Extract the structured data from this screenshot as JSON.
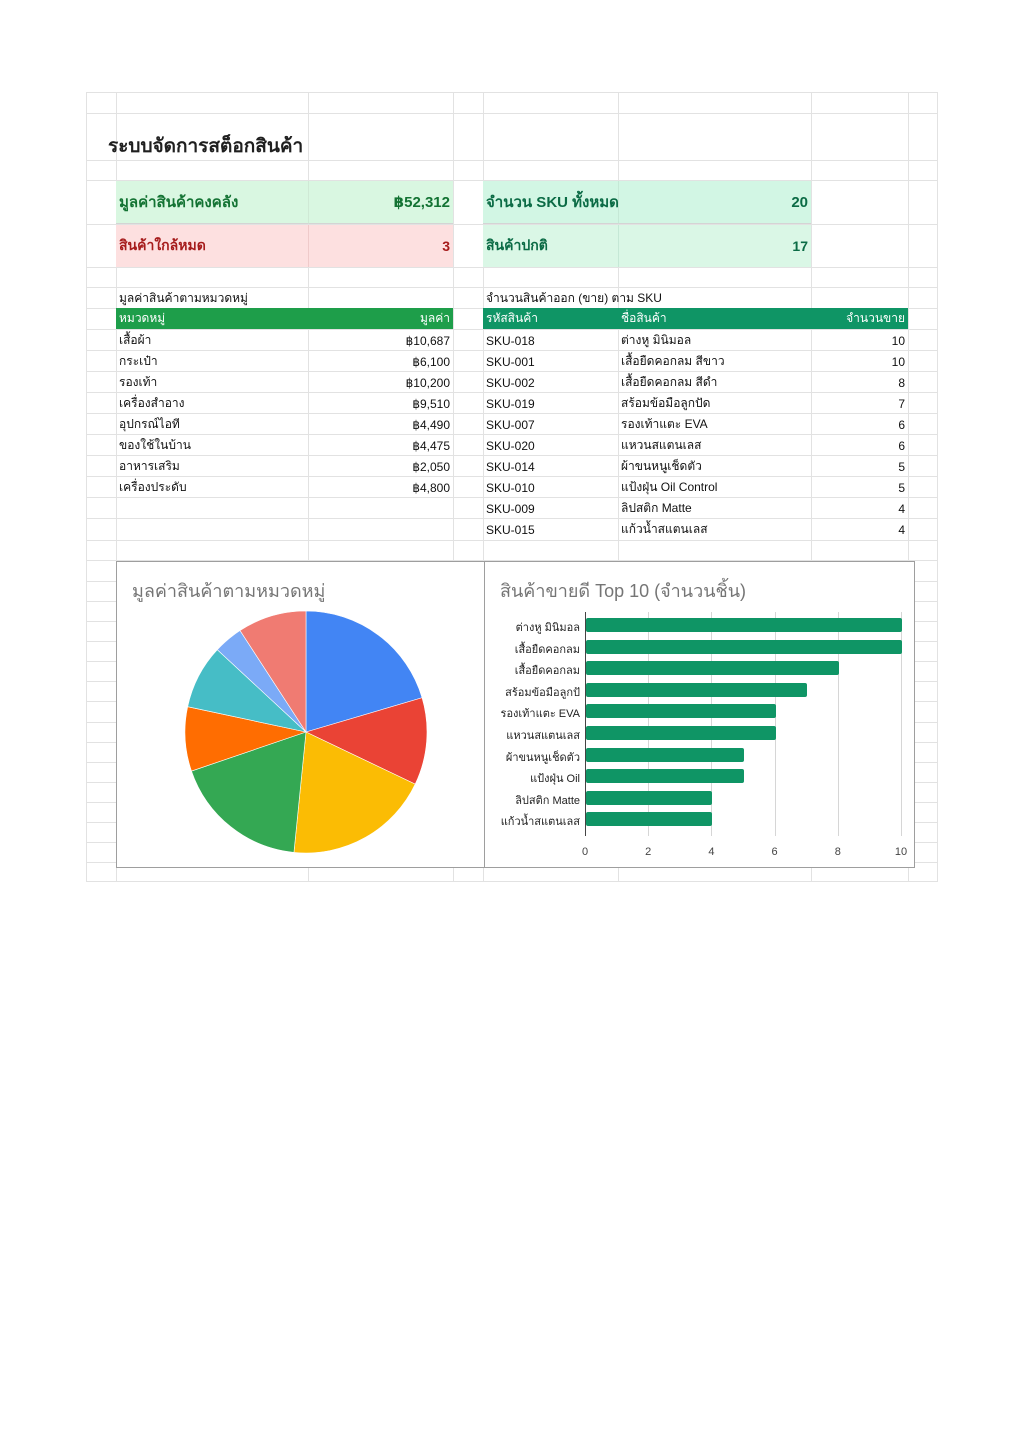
{
  "sheet": {
    "title": "ระบบจัดการสต็อกสินค้า"
  },
  "kpis": {
    "inventory_value": {
      "label": "มูลค่าสินค้าคงคลัง",
      "value": "฿52,312"
    },
    "total_sku": {
      "label": "จำนวน SKU ทั้งหมด",
      "value": "20"
    },
    "low_stock": {
      "label": "สินค้าใกล้หมด",
      "value": "3"
    },
    "normal_stock": {
      "label": "สินค้าปกติ",
      "value": "17"
    }
  },
  "category_table": {
    "caption": "มูลค่าสินค้าตามหมวดหมู่",
    "headers": [
      "หมวดหมู่",
      "มูลค่า"
    ],
    "rows": [
      [
        "เสื้อผ้า",
        "฿10,687"
      ],
      [
        "กระเป๋า",
        "฿6,100"
      ],
      [
        "รองเท้า",
        "฿10,200"
      ],
      [
        "เครื่องสำอาง",
        "฿9,510"
      ],
      [
        "อุปกรณ์ไอที",
        "฿4,490"
      ],
      [
        "ของใช้ในบ้าน",
        "฿4,475"
      ],
      [
        "อาหารเสริม",
        "฿2,050"
      ],
      [
        "เครื่องประดับ",
        "฿4,800"
      ]
    ]
  },
  "sales_table": {
    "caption": "จำนวนสินค้าออก (ขาย) ตาม SKU",
    "headers": [
      "รหัสสินค้า",
      "ชื่อสินค้า",
      "จำนวนขาย"
    ],
    "rows": [
      [
        "SKU-018",
        "ต่างหู มินิมอล",
        "10"
      ],
      [
        "SKU-001",
        "เสื้อยืดคอกลม สีขาว",
        "10"
      ],
      [
        "SKU-002",
        "เสื้อยืดคอกลม สีดำ",
        "8"
      ],
      [
        "SKU-019",
        "สร้อมข้อมือลูกปัด",
        "7"
      ],
      [
        "SKU-007",
        "รองเท้าแตะ EVA",
        "6"
      ],
      [
        "SKU-020",
        "แหวนสแตนเลส",
        "6"
      ],
      [
        "SKU-014",
        "ผ้าขนหนูเช็ดตัว",
        "5"
      ],
      [
        "SKU-010",
        "แป้งฝุ่น Oil Control",
        "5"
      ],
      [
        "SKU-009",
        "ลิปสติก Matte",
        "4"
      ],
      [
        "SKU-015",
        "แก้วน้ำสแตนเลส",
        "4"
      ]
    ]
  },
  "chart_data": [
    {
      "type": "pie",
      "title": "มูลค่าสินค้าตามหมวดหมู่",
      "categories": [
        "เสื้อผ้า",
        "กระเป๋า",
        "รองเท้า",
        "เครื่องสำอาง",
        "อุปกรณ์ไอที",
        "ของใช้ในบ้าน",
        "อาหารเสริม",
        "เครื่องประดับ"
      ],
      "values": [
        10687,
        6100,
        10200,
        9510,
        4490,
        4475,
        2050,
        4800
      ],
      "colors": [
        "#4285f4",
        "#ea4335",
        "#fbbc04",
        "#34a853",
        "#ff6d01",
        "#46bdc6",
        "#7baaf7",
        "#f07b72"
      ],
      "legend": "none"
    },
    {
      "type": "bar",
      "orientation": "horizontal",
      "title": "สินค้าขายดี Top 10 (จำนวนชิ้น)",
      "categories": [
        "ต่างหู มินิมอล",
        "เสื้อยืดคอกลม",
        "เสื้อยืดคอกลม",
        "สร้อมข้อมือลูกปั",
        "รองเท้าแตะ EVA",
        "แหวนสแตนเลส",
        "ผ้าขนหนูเช็ดตัว",
        "แป้งฝุ่น Oil",
        "ลิปสติก Matte",
        "แก้วน้ำสแตนเลส"
      ],
      "values": [
        10,
        10,
        8,
        7,
        6,
        6,
        5,
        5,
        4,
        4
      ],
      "xticks": [
        "0",
        "2",
        "4",
        "6",
        "8",
        "10"
      ],
      "xlim": [
        0,
        10
      ],
      "grid": true,
      "color": "#0f9565",
      "legend": "none"
    }
  ]
}
